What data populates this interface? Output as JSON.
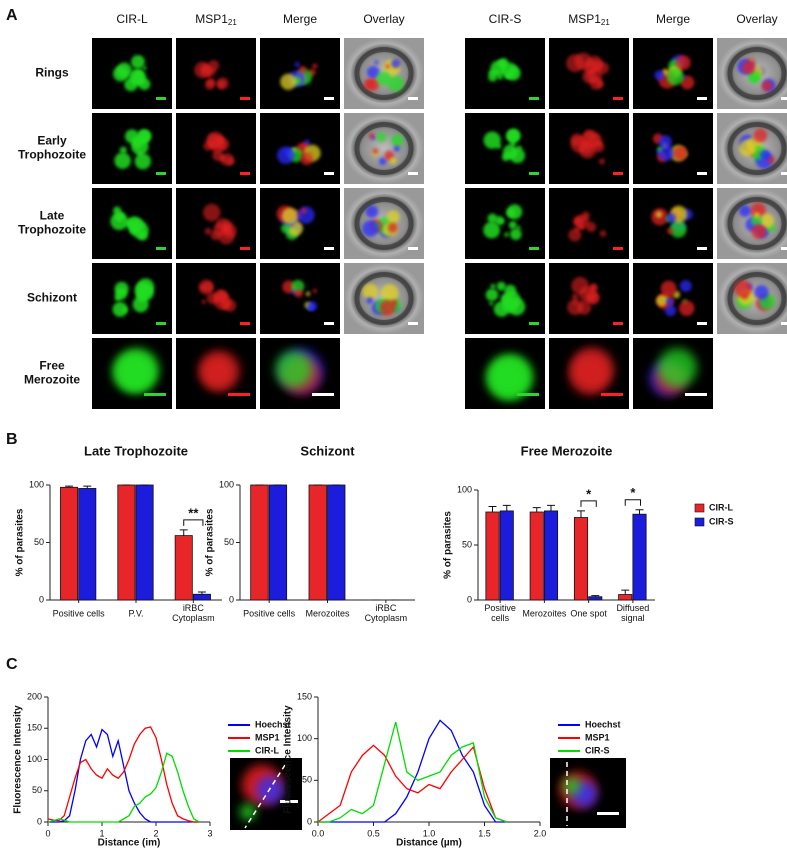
{
  "figure": {
    "panel_labels": [
      "A",
      "B",
      "C"
    ],
    "microscopy": [
      {
        "columns": [
          "CIR-L",
          {
            "text": "MSP1",
            "sub": "21"
          },
          "Merge",
          "Overlay"
        ]
      },
      {
        "columns": [
          "CIR-S",
          {
            "text": "MSP1",
            "sub": "21"
          },
          "Merge",
          "Overlay"
        ]
      }
    ],
    "rows": [
      "Rings",
      "Early\nTrophozoite",
      "Late\nTrophozoite",
      "Schizont",
      "Free\nMerozoite"
    ]
  },
  "chart_data": [
    {
      "type": "bar",
      "title": "Late Trophozoite",
      "y_label": "% of parasites",
      "categories": [
        "Positive cells",
        "P.V.",
        "iRBC\nCytoplasm"
      ],
      "series": [
        {
          "color": "#e8262a",
          "values": [
            98,
            100,
            56
          ],
          "errors": [
            1,
            0,
            5
          ]
        },
        {
          "color": "#1c1cdc",
          "values": [
            97,
            100,
            5
          ],
          "errors": [
            2,
            0,
            2
          ]
        }
      ],
      "ylim": [
        0,
        100
      ],
      "yticks": [
        0,
        50,
        100
      ],
      "annotations": [
        {
          "text": "**",
          "category": 2
        }
      ]
    },
    {
      "type": "bar",
      "title": "Schizont",
      "y_label": "% of parasites",
      "categories": [
        "Positive cells",
        "Merozoites",
        "iRBC\nCytoplasm"
      ],
      "series": [
        {
          "color": "#e8262a",
          "values": [
            100,
            100,
            0
          ],
          "errors": [
            0,
            0,
            0
          ]
        },
        {
          "color": "#1c1cdc",
          "values": [
            100,
            100,
            0
          ],
          "errors": [
            0,
            0,
            0
          ]
        }
      ],
      "ylim": [
        0,
        100
      ],
      "yticks": [
        0,
        50,
        100
      ]
    },
    {
      "type": "bar",
      "title": "Free Merozoite",
      "y_label": "% of parasites",
      "categories": [
        "Positive\ncells",
        "Merozoites",
        "One spot",
        "Diffused\nsignal"
      ],
      "series": [
        {
          "name": "CIR-L",
          "color": "#e8262a",
          "values": [
            80,
            80,
            75,
            5
          ],
          "errors": [
            5,
            4,
            6,
            4
          ]
        },
        {
          "name": "CIR-S",
          "color": "#1c1cdc",
          "values": [
            81,
            81,
            3,
            78
          ],
          "errors": [
            5,
            5,
            1,
            4
          ]
        }
      ],
      "ylim": [
        0,
        100
      ],
      "yticks": [
        0,
        50,
        100
      ],
      "legend": "right",
      "annotations": [
        {
          "text": "*",
          "category": 2
        },
        {
          "text": "*",
          "category": 3
        }
      ]
    },
    {
      "type": "line",
      "x_label": "Distance (im)",
      "y_label": "Fluorescence Intensity",
      "x": [
        0,
        0.1,
        0.2,
        0.3,
        0.4,
        0.5,
        0.6,
        0.7,
        0.8,
        0.9,
        1.0,
        1.1,
        1.2,
        1.3,
        1.4,
        1.5,
        1.6,
        1.7,
        1.8,
        1.9,
        2.0,
        2.1,
        2.2,
        2.3,
        2.4,
        2.5,
        2.6,
        2.7,
        2.8
      ],
      "series": [
        {
          "name": "Hoechst",
          "color": "#0000ff",
          "values": [
            0,
            0,
            0,
            2,
            10,
            50,
            100,
            130,
            140,
            120,
            148,
            140,
            105,
            130,
            90,
            50,
            30,
            15,
            5,
            0,
            0,
            0,
            0,
            0,
            0,
            0,
            0,
            0,
            0
          ]
        },
        {
          "name": "MSP1",
          "color": "#ff0000",
          "values": [
            5,
            3,
            2,
            10,
            40,
            70,
            95,
            100,
            85,
            75,
            70,
            85,
            75,
            70,
            80,
            100,
            125,
            140,
            150,
            152,
            135,
            100,
            60,
            30,
            10,
            5,
            2,
            0,
            0
          ]
        },
        {
          "name": "CIR-L",
          "color": "#00dd00",
          "values": [
            0,
            2,
            5,
            3,
            0,
            0,
            0,
            0,
            0,
            0,
            0,
            0,
            0,
            0,
            5,
            10,
            25,
            30,
            40,
            45,
            55,
            80,
            110,
            105,
            80,
            50,
            25,
            5,
            0
          ]
        }
      ],
      "xlim": [
        0,
        3
      ],
      "xticks": [
        0,
        1,
        2,
        3
      ],
      "ylim": [
        0,
        200
      ],
      "yticks": [
        0,
        50,
        100,
        150,
        200
      ],
      "legend": "right"
    },
    {
      "type": "line",
      "x_label": "Distance (µm)",
      "y_label": "Fluorescence Intensity",
      "x": [
        0,
        0.1,
        0.2,
        0.3,
        0.4,
        0.5,
        0.6,
        0.7,
        0.8,
        0.9,
        1.0,
        1.1,
        1.2,
        1.3,
        1.4,
        1.5,
        1.6,
        1.7
      ],
      "series": [
        {
          "name": "Hoechst",
          "color": "#0000ff",
          "values": [
            0,
            0,
            0,
            0,
            0,
            0,
            0,
            10,
            30,
            60,
            100,
            122,
            110,
            80,
            60,
            20,
            0,
            0
          ]
        },
        {
          "name": "MSP1",
          "color": "#ff0000",
          "values": [
            0,
            10,
            20,
            60,
            80,
            92,
            80,
            55,
            40,
            35,
            45,
            40,
            60,
            75,
            90,
            40,
            5,
            0
          ]
        },
        {
          "name": "CIR-S",
          "color": "#00dd00",
          "values": [
            0,
            0,
            5,
            15,
            10,
            20,
            70,
            120,
            60,
            50,
            55,
            60,
            80,
            90,
            95,
            30,
            5,
            0
          ]
        }
      ],
      "xlim": [
        0,
        2
      ],
      "xticks": [
        {
          "value": 0,
          "label": "0.0"
        },
        0.5,
        {
          "value": 1,
          "label": "1.0"
        },
        1.5,
        {
          "value": 2,
          "label": "2.0"
        }
      ],
      "ylim": [
        0,
        150
      ],
      "yticks": [
        0,
        50,
        100,
        150
      ],
      "legend": "right"
    }
  ]
}
